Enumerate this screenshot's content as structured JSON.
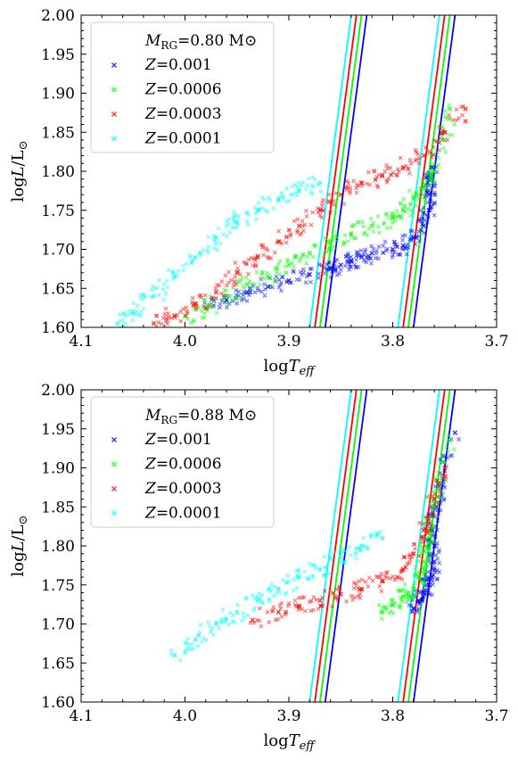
{
  "chart_data": [
    {
      "type": "scatter",
      "xlabel": "log T_eff",
      "ylabel": "log L/L⊙",
      "xlim": [
        4.1,
        3.7
      ],
      "ylim": [
        1.6,
        2.0
      ],
      "x_ticks": [
        "4.1",
        "4.0",
        "3.9",
        "3.8",
        "3.7"
      ],
      "y_ticks": [
        "1.60",
        "1.65",
        "1.70",
        "1.75",
        "1.80",
        "1.85",
        "1.90",
        "1.95",
        "2.00"
      ],
      "legend": {
        "position": "top-left",
        "title": "M_RG=0.80 M⊙",
        "entries": [
          "Z=0.001",
          "Z=0.0006",
          "Z=0.0003",
          "Z=0.0001"
        ]
      },
      "colors": {
        "Z=0.001": "#0000ff",
        "Z=0.0006": "#00ff00",
        "Z=0.0003": "#ff0000",
        "Z=0.0001": "#00ffff"
      },
      "series": [
        {
          "name": "Z=0.001",
          "color": "#0000ff",
          "x": [
            3.98,
            3.96,
            3.94,
            3.92,
            3.9,
            3.88,
            3.86,
            3.85,
            3.84,
            3.83,
            3.82,
            3.8,
            3.79,
            3.78,
            3.77,
            3.765,
            3.765,
            3.765,
            3.762
          ],
          "y": [
            1.625,
            1.635,
            1.645,
            1.652,
            1.66,
            1.668,
            1.675,
            1.68,
            1.685,
            1.69,
            1.695,
            1.7,
            1.705,
            1.715,
            1.73,
            1.75,
            1.77,
            1.79,
            1.805
          ]
        },
        {
          "name": "Z=0.0006",
          "color": "#00ff00",
          "x": [
            4.0,
            3.98,
            3.96,
            3.94,
            3.92,
            3.9,
            3.88,
            3.86,
            3.84,
            3.82,
            3.8,
            3.79,
            3.78,
            3.77,
            3.76,
            3.75,
            3.745
          ],
          "y": [
            1.615,
            1.625,
            1.64,
            1.655,
            1.665,
            1.68,
            1.695,
            1.71,
            1.72,
            1.73,
            1.74,
            1.75,
            1.765,
            1.78,
            1.8,
            1.84,
            1.88
          ]
        },
        {
          "name": "Z=0.0003",
          "color": "#ff0000",
          "x": [
            4.03,
            4.01,
            3.99,
            3.97,
            3.95,
            3.93,
            3.91,
            3.89,
            3.87,
            3.85,
            3.83,
            3.81,
            3.79,
            3.77,
            3.75,
            3.73
          ],
          "y": [
            1.605,
            1.615,
            1.63,
            1.645,
            1.67,
            1.69,
            1.71,
            1.73,
            1.75,
            1.77,
            1.785,
            1.795,
            1.805,
            1.82,
            1.85,
            1.88
          ]
        },
        {
          "name": "Z=0.0001",
          "color": "#00ffff",
          "x": [
            4.065,
            4.05,
            4.03,
            4.01,
            3.99,
            3.97,
            3.95,
            3.93,
            3.91,
            3.89,
            3.87
          ],
          "y": [
            1.605,
            1.62,
            1.64,
            1.665,
            1.69,
            1.715,
            1.735,
            1.75,
            1.765,
            1.775,
            1.785
          ]
        }
      ],
      "instability_strip": {
        "colors": [
          "#00ffff",
          "#ff0000",
          "#00ff00",
          "#0000ff"
        ],
        "blue_edge_x_at_y_min": [
          3.88,
          3.875,
          3.87,
          3.865
        ],
        "red_edge_x_at_y_min": [
          3.795,
          3.79,
          3.785,
          3.78
        ],
        "x_shift_to_y_max": -0.04
      }
    },
    {
      "type": "scatter",
      "xlabel": "log T_eff",
      "ylabel": "log L/L⊙",
      "xlim": [
        4.1,
        3.7
      ],
      "ylim": [
        1.6,
        2.0
      ],
      "x_ticks": [
        "4.1",
        "4.0",
        "3.9",
        "3.8",
        "3.7"
      ],
      "y_ticks": [
        "1.60",
        "1.65",
        "1.70",
        "1.75",
        "1.80",
        "1.85",
        "1.90",
        "1.95",
        "2.00"
      ],
      "legend": {
        "position": "top-left",
        "title": "M_RG=0.88 M⊙",
        "entries": [
          "Z=0.001",
          "Z=0.0006",
          "Z=0.0003",
          "Z=0.0001"
        ]
      },
      "colors": {
        "Z=0.001": "#0000ff",
        "Z=0.0006": "#00ff00",
        "Z=0.0003": "#ff0000",
        "Z=0.0001": "#00ffff"
      },
      "series": [
        {
          "name": "Z=0.001",
          "color": "#0000ff",
          "x": [
            3.78,
            3.775,
            3.77,
            3.765,
            3.762,
            3.76,
            3.76,
            3.762,
            3.758,
            3.755,
            3.74
          ],
          "y": [
            1.72,
            1.73,
            1.74,
            1.75,
            1.76,
            1.78,
            1.8,
            1.82,
            1.85,
            1.88,
            1.945
          ]
        },
        {
          "name": "Z=0.0006",
          "color": "#00ff00",
          "x": [
            3.81,
            3.8,
            3.79,
            3.78,
            3.775,
            3.77,
            3.768,
            3.765,
            3.76,
            3.755,
            3.745
          ],
          "y": [
            1.715,
            1.725,
            1.735,
            1.745,
            1.76,
            1.78,
            1.8,
            1.82,
            1.85,
            1.88,
            1.935
          ]
        },
        {
          "name": "Z=0.0003",
          "color": "#ff0000",
          "x": [
            3.935,
            3.91,
            3.89,
            3.87,
            3.85,
            3.83,
            3.81,
            3.79,
            3.78,
            3.77,
            3.76,
            3.75
          ],
          "y": [
            1.705,
            1.715,
            1.722,
            1.73,
            1.738,
            1.745,
            1.755,
            1.77,
            1.79,
            1.82,
            1.86,
            1.9
          ]
        },
        {
          "name": "Z=0.0001",
          "color": "#00ffff",
          "x": [
            4.01,
            3.99,
            3.97,
            3.95,
            3.93,
            3.91,
            3.89,
            3.87,
            3.85,
            3.83,
            3.81
          ],
          "y": [
            1.66,
            1.68,
            1.7,
            1.715,
            1.73,
            1.745,
            1.76,
            1.77,
            1.785,
            1.8,
            1.81
          ]
        }
      ],
      "instability_strip": {
        "colors": [
          "#00ffff",
          "#ff0000",
          "#00ff00",
          "#0000ff"
        ],
        "blue_edge_x_at_y_min": [
          3.88,
          3.875,
          3.87,
          3.865
        ],
        "red_edge_x_at_y_min": [
          3.795,
          3.79,
          3.785,
          3.78
        ],
        "x_shift_to_y_max": -0.04
      }
    }
  ]
}
